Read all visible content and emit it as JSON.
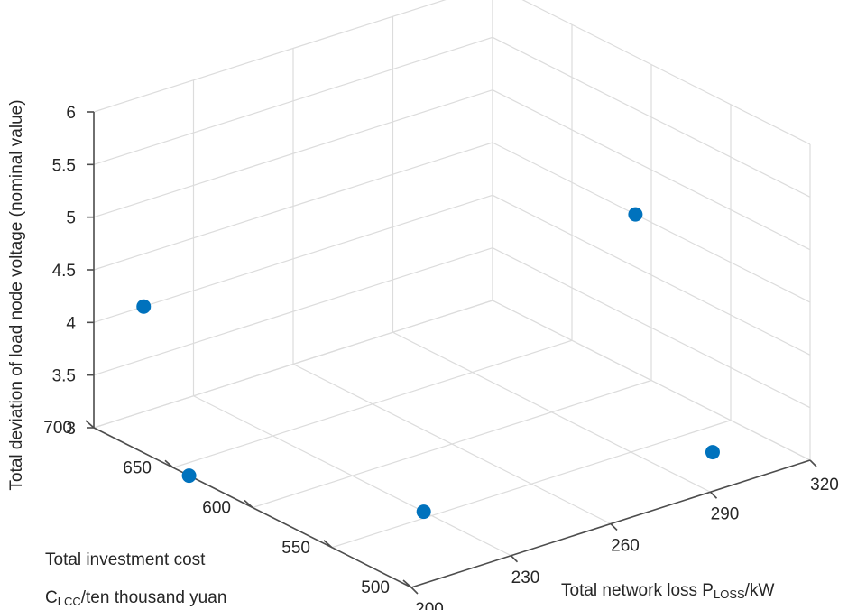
{
  "chart_data": {
    "type": "scatter3d",
    "x_axis": {
      "label": "Total network loss",
      "label_sub": "LOSS",
      "label_pre_sub": "P",
      "label_post": "/kW",
      "ticks": [
        200,
        230,
        260,
        290,
        320
      ],
      "range": [
        200,
        320
      ]
    },
    "y_axis": {
      "label_line1": "Total investment cost",
      "label_line2_pre": "C",
      "label_line2_sub": "LCC",
      "label_line2_post": "/ten thousand yuan",
      "ticks": [
        500,
        550,
        600,
        650,
        700
      ],
      "range": [
        500,
        700
      ]
    },
    "z_axis": {
      "label": "Total deviation of load node voltage (nominal value)",
      "ticks": [
        3,
        3.5,
        4,
        4.5,
        5,
        5.5,
        6
      ],
      "range": [
        3,
        6
      ]
    },
    "points": [
      {
        "x": 200,
        "y": 640,
        "z": 3.0
      },
      {
        "x": 215,
        "y": 700,
        "z": 4.0
      },
      {
        "x": 230,
        "y": 555,
        "z": 3.0
      },
      {
        "x": 305,
        "y": 530,
        "z": 3.0
      },
      {
        "x": 320,
        "y": 610,
        "z": 4.5
      }
    ],
    "marker_color": "#0072BD",
    "grid": true
  }
}
